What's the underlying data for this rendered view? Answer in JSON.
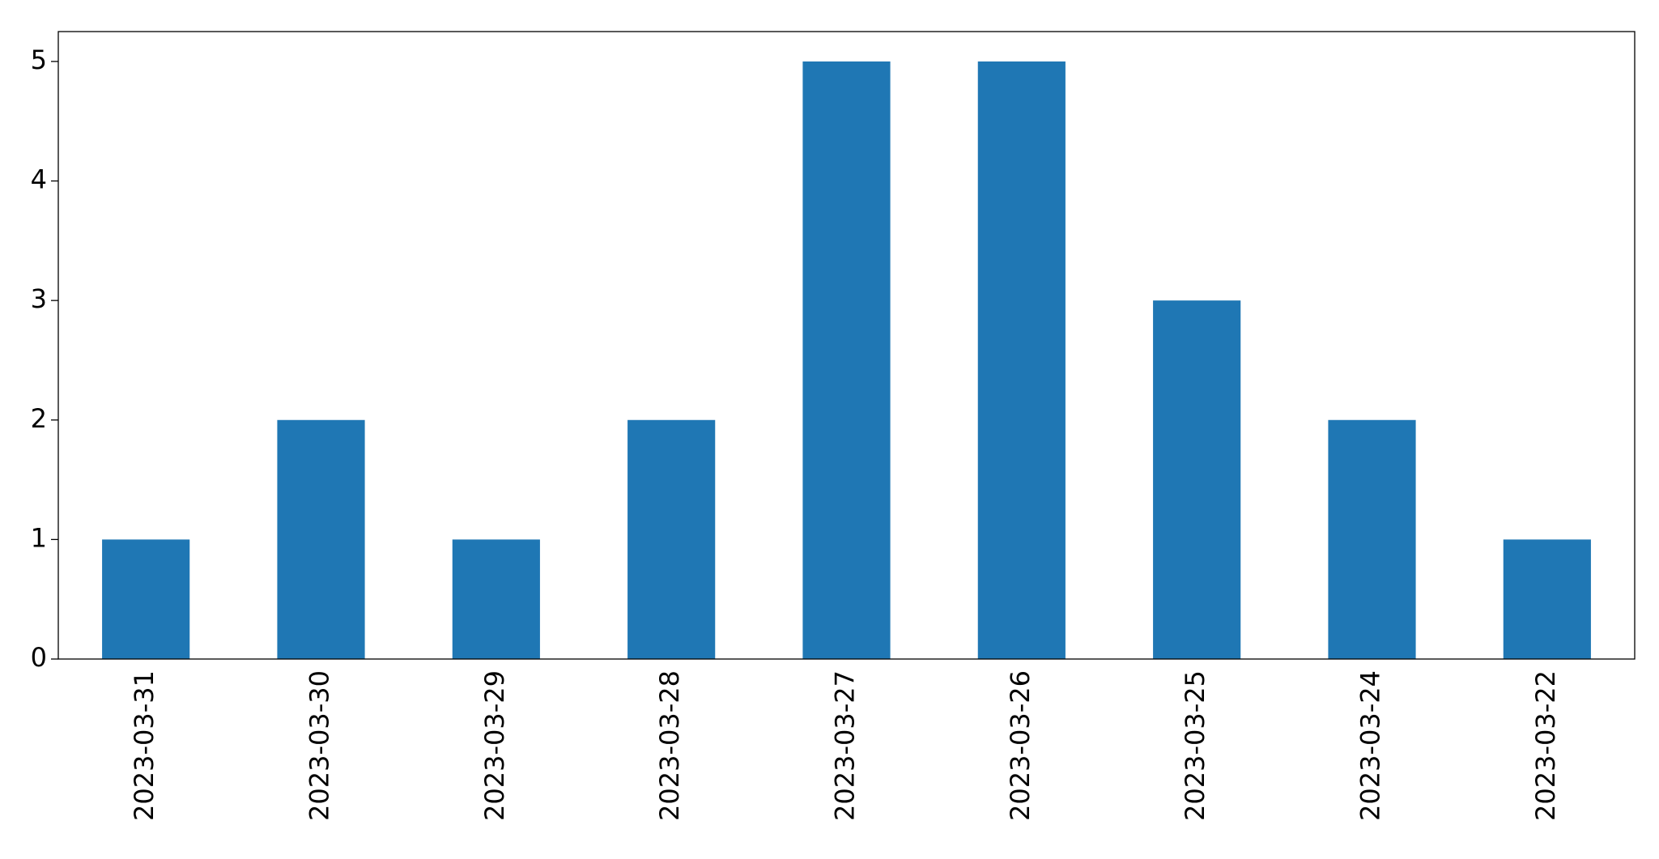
{
  "chart_data": {
    "type": "bar",
    "categories": [
      "2023-03-31",
      "2023-03-30",
      "2023-03-29",
      "2023-03-28",
      "2023-03-27",
      "2023-03-26",
      "2023-03-25",
      "2023-03-24",
      "2023-03-22"
    ],
    "values": [
      1,
      2,
      1,
      2,
      5,
      5,
      3,
      2,
      1
    ],
    "color": "#1f77b4",
    "ylim": [
      0,
      5.25
    ],
    "yticks": [
      0,
      1,
      2,
      3,
      4,
      5
    ],
    "grid": false
  }
}
